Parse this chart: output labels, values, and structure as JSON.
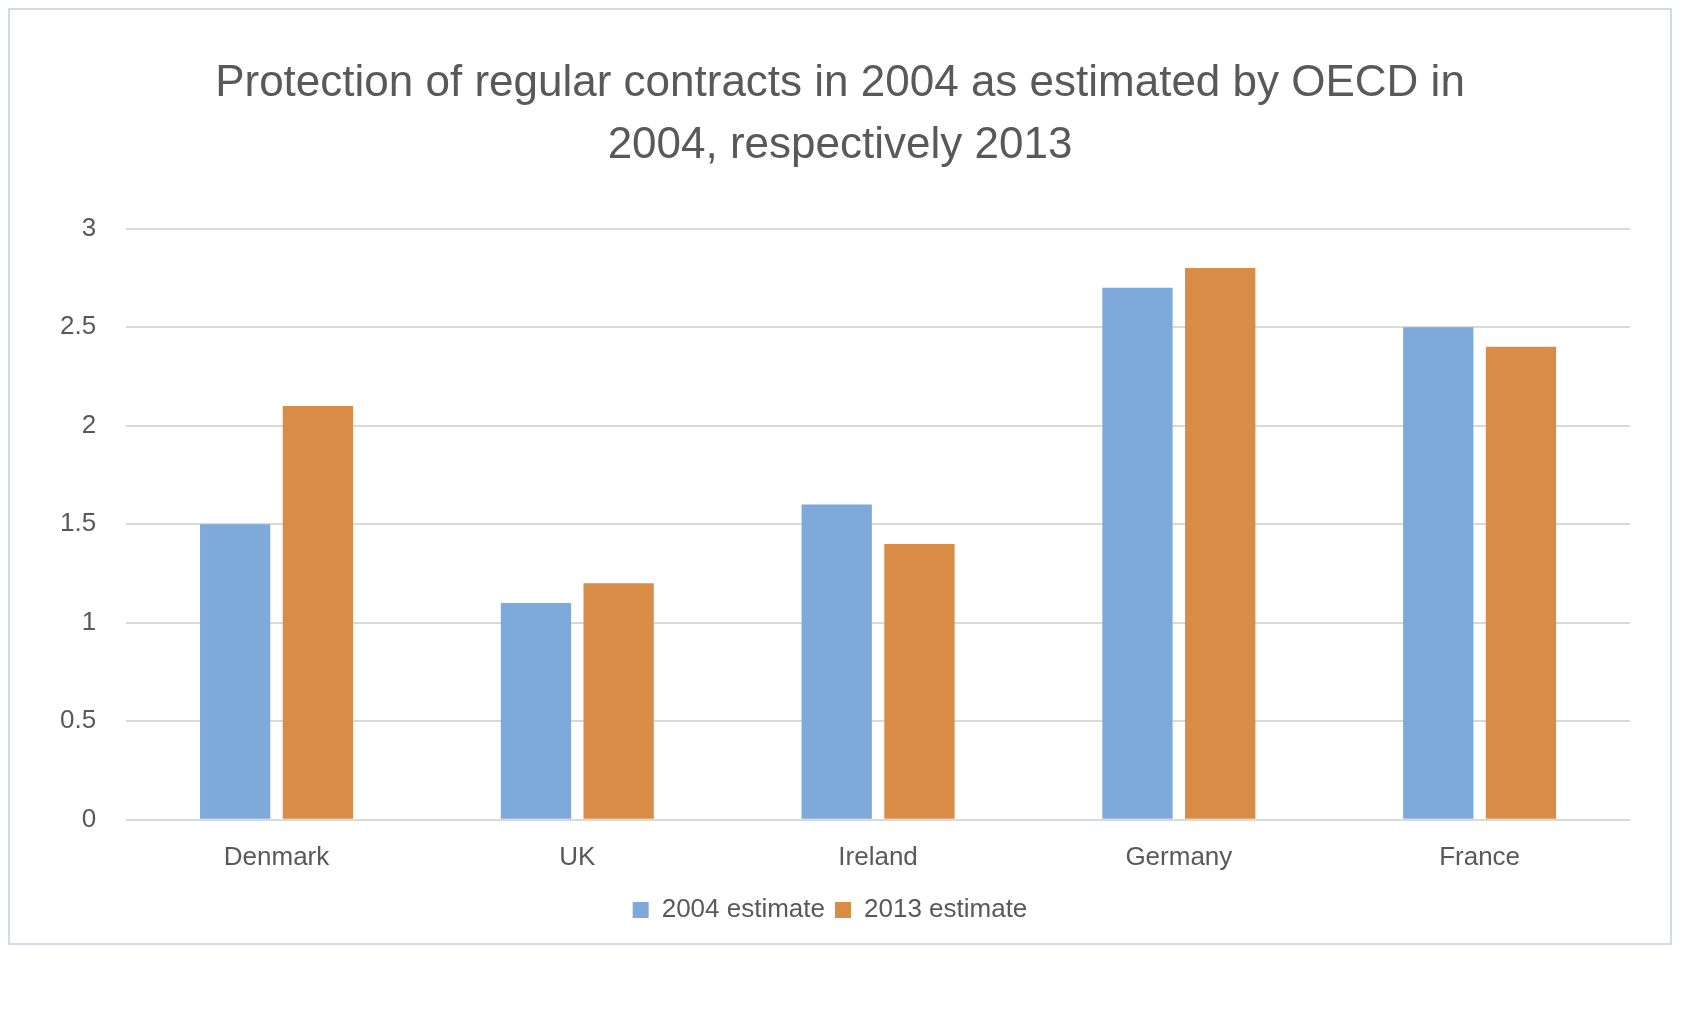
{
  "chart_data": {
    "type": "bar",
    "title": "Protection of regular contracts in 2004 as estimated by OECD in 2004, respectively 2013",
    "categories": [
      "Denmark",
      "UK",
      "Ireland",
      "Germany",
      "France"
    ],
    "series": [
      {
        "name": "2004 estimate",
        "color": "#7ea9db",
        "values": [
          1.5,
          1.1,
          1.6,
          2.7,
          2.5
        ]
      },
      {
        "name": "2013 estimate",
        "color": "#d98c45",
        "values": [
          2.1,
          1.2,
          1.4,
          2.8,
          2.4
        ]
      }
    ],
    "ylim": [
      0,
      3
    ],
    "yticks": [
      0,
      0.5,
      1,
      1.5,
      2,
      2.5,
      3
    ],
    "grid": "y",
    "legend": "bottom"
  }
}
